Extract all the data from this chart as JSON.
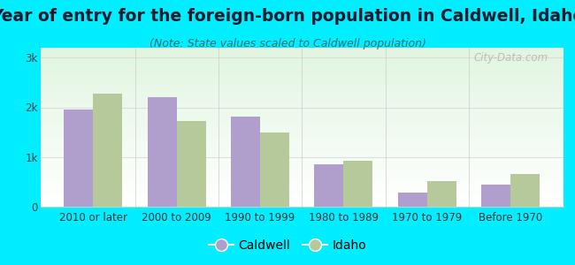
{
  "title": "Year of entry for the foreign-born population in Caldwell, Idaho",
  "subtitle": "(Note: State values scaled to Caldwell population)",
  "categories": [
    "2010 or later",
    "2000 to 2009",
    "1990 to 1999",
    "1980 to 1989",
    "1970 to 1979",
    "Before 1970"
  ],
  "caldwell_values": [
    1950,
    2200,
    1820,
    850,
    290,
    450
  ],
  "idaho_values": [
    2280,
    1720,
    1500,
    930,
    520,
    660
  ],
  "caldwell_color": "#b09fcc",
  "idaho_color": "#b5c99a",
  "background_outer": "#00eeff",
  "ytick_labels": [
    "0",
    "1k",
    "2k",
    "3k"
  ],
  "ytick_values": [
    0,
    1000,
    2000,
    3000
  ],
  "ylim": [
    0,
    3200
  ],
  "bar_width": 0.35,
  "title_fontsize": 13.5,
  "subtitle_fontsize": 9,
  "tick_fontsize": 8.5,
  "legend_fontsize": 10,
  "watermark_text": "City-Data.com"
}
